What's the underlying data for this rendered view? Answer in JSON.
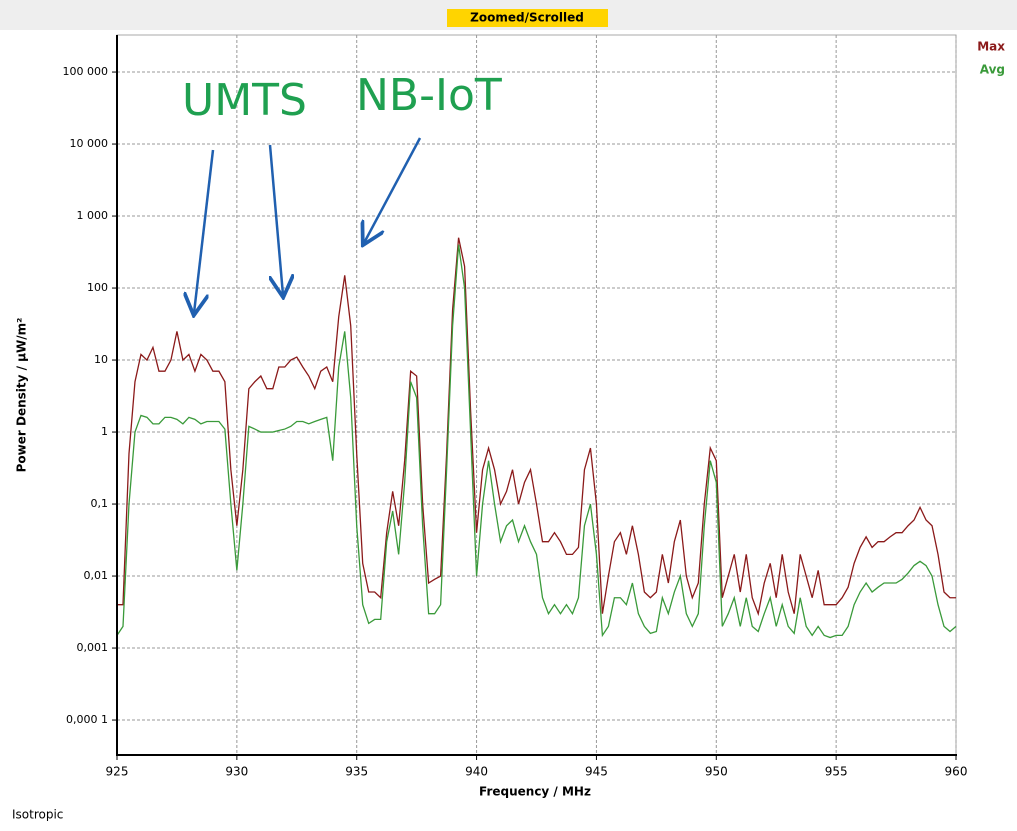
{
  "chart_data": {
    "type": "line",
    "title": "Zoomed/Scrolled",
    "xlabel": "Frequency / MHz",
    "ylabel": "Power Density / µW/m²",
    "footer": "Isotropic",
    "annotations": [
      "UMTS",
      "NB-IoT"
    ],
    "log_y": true,
    "grid": true,
    "legend": "top-right",
    "xlim": [
      925,
      960
    ],
    "xticks": [
      925,
      930,
      935,
      940,
      945,
      950,
      955,
      960
    ],
    "ylim": [
      3.27e-05,
      327000
    ],
    "yticks": [
      {
        "value": 100000,
        "label": "100 000"
      },
      {
        "value": 10000,
        "label": "10 000"
      },
      {
        "value": 1000,
        "label": "1 000"
      },
      100,
      10,
      1,
      {
        "value": 0.1,
        "label": "0,1"
      },
      {
        "value": 0.01,
        "label": "0,01"
      },
      {
        "value": 0.001,
        "label": "0,001"
      },
      {
        "value": 0.0001,
        "label": "0,000 1"
      }
    ],
    "x": [
      925,
      925.25,
      925.5,
      925.75,
      926,
      926.25,
      926.5,
      926.75,
      927,
      927.25,
      927.5,
      927.75,
      928,
      928.25,
      928.5,
      928.75,
      929,
      929.25,
      929.5,
      929.75,
      930,
      930.25,
      930.5,
      930.75,
      931,
      931.25,
      931.5,
      931.75,
      932,
      932.25,
      932.5,
      932.75,
      933,
      933.25,
      933.5,
      933.75,
      934,
      934.25,
      934.5,
      934.75,
      935,
      935.25,
      935.5,
      935.75,
      936,
      936.25,
      936.5,
      936.75,
      937,
      937.25,
      937.5,
      937.75,
      938,
      938.25,
      938.5,
      938.75,
      939,
      939.25,
      939.5,
      939.75,
      940,
      940.25,
      940.5,
      940.75,
      941,
      941.25,
      941.5,
      941.75,
      942,
      942.25,
      942.5,
      942.75,
      943,
      943.25,
      943.5,
      943.75,
      944,
      944.25,
      944.5,
      944.75,
      945,
      945.25,
      945.5,
      945.75,
      946,
      946.25,
      946.5,
      946.75,
      947,
      947.25,
      947.5,
      947.75,
      948,
      948.25,
      948.5,
      948.75,
      949,
      949.25,
      949.5,
      949.75,
      950,
      950.25,
      950.5,
      950.75,
      951,
      951.25,
      951.5,
      951.75,
      952,
      952.25,
      952.5,
      952.75,
      953,
      953.25,
      953.5,
      953.75,
      954,
      954.25,
      954.5,
      954.75,
      955,
      955.25,
      955.5,
      955.75,
      956,
      956.25,
      956.5,
      956.75,
      957,
      957.25,
      957.5,
      957.75,
      958,
      958.25,
      958.5,
      958.75,
      959,
      959.25,
      959.5,
      959.75,
      960
    ],
    "series": [
      {
        "name": "Max",
        "color": "#8b1a1a",
        "values": [
          0.004,
          0.004,
          0.5,
          5,
          12,
          10,
          15,
          7,
          7,
          10,
          25,
          10,
          12,
          7,
          12,
          10,
          7,
          7,
          5,
          0.3,
          0.05,
          0.3,
          4,
          5,
          6,
          4,
          4,
          8,
          8,
          10,
          11,
          8,
          6,
          4,
          7,
          8,
          5,
          40,
          150,
          30,
          0.5,
          0.015,
          0.006,
          0.006,
          0.005,
          0.04,
          0.15,
          0.05,
          0.4,
          7,
          6,
          0.1,
          0.008,
          0.009,
          0.01,
          0.5,
          50,
          500,
          200,
          2,
          0.04,
          0.3,
          0.6,
          0.3,
          0.1,
          0.15,
          0.3,
          0.1,
          0.2,
          0.3,
          0.1,
          0.03,
          0.03,
          0.04,
          0.03,
          0.02,
          0.02,
          0.025,
          0.3,
          0.6,
          0.1,
          0.003,
          0.01,
          0.03,
          0.04,
          0.02,
          0.05,
          0.02,
          0.006,
          0.005,
          0.006,
          0.02,
          0.008,
          0.03,
          0.06,
          0.01,
          0.005,
          0.008,
          0.1,
          0.6,
          0.4,
          0.005,
          0.01,
          0.02,
          0.006,
          0.02,
          0.005,
          0.003,
          0.008,
          0.015,
          0.005,
          0.02,
          0.006,
          0.003,
          0.02,
          0.01,
          0.005,
          0.012,
          0.004,
          0.004,
          0.004,
          0.005,
          0.007,
          0.015,
          0.025,
          0.035,
          0.025,
          0.03,
          0.03,
          0.035,
          0.04,
          0.04,
          0.05,
          0.06,
          0.09,
          0.06,
          0.05,
          0.02,
          0.006,
          0.005,
          0.005
        ]
      },
      {
        "name": "Avg",
        "color": "#3a9a3a",
        "values": [
          0.0015,
          0.002,
          0.1,
          1,
          1.7,
          1.6,
          1.3,
          1.3,
          1.6,
          1.6,
          1.5,
          1.3,
          1.6,
          1.5,
          1.3,
          1.4,
          1.4,
          1.4,
          1.1,
          0.1,
          0.012,
          0.1,
          1.2,
          1.1,
          1,
          1,
          1,
          1.05,
          1.1,
          1.2,
          1.4,
          1.4,
          1.3,
          1.4,
          1.5,
          1.6,
          0.4,
          8,
          25,
          3,
          0.05,
          0.004,
          0.0022,
          0.0025,
          0.0025,
          0.03,
          0.08,
          0.02,
          0.2,
          5,
          3,
          0.05,
          0.003,
          0.003,
          0.004,
          0.3,
          30,
          400,
          100,
          1,
          0.01,
          0.1,
          0.4,
          0.1,
          0.03,
          0.05,
          0.06,
          0.03,
          0.05,
          0.03,
          0.02,
          0.005,
          0.003,
          0.004,
          0.003,
          0.004,
          0.003,
          0.005,
          0.05,
          0.1,
          0.02,
          0.0015,
          0.002,
          0.005,
          0.005,
          0.004,
          0.008,
          0.003,
          0.002,
          0.0016,
          0.0017,
          0.005,
          0.003,
          0.006,
          0.01,
          0.003,
          0.002,
          0.003,
          0.05,
          0.4,
          0.2,
          0.002,
          0.003,
          0.005,
          0.002,
          0.005,
          0.002,
          0.0017,
          0.003,
          0.005,
          0.002,
          0.004,
          0.002,
          0.0016,
          0.005,
          0.002,
          0.0015,
          0.002,
          0.0015,
          0.0014,
          0.0015,
          0.0015,
          0.002,
          0.004,
          0.006,
          0.008,
          0.006,
          0.007,
          0.008,
          0.008,
          0.008,
          0.009,
          0.011,
          0.014,
          0.016,
          0.014,
          0.01,
          0.004,
          0.002,
          0.0017,
          0.002
        ]
      }
    ]
  }
}
